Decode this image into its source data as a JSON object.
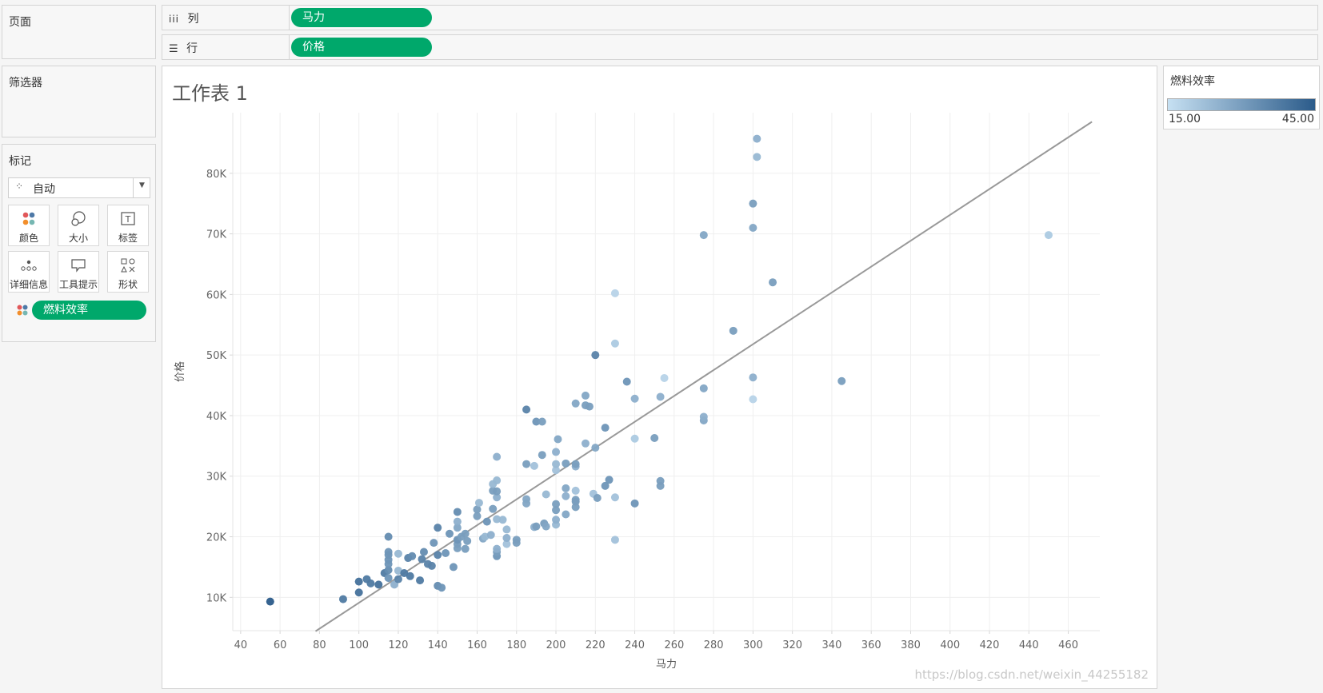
{
  "sidebar": {
    "pages_title": "页面",
    "filters_title": "筛选器",
    "marks_title": "标记",
    "mark_type": "自动",
    "buttons": [
      {
        "label": "颜色",
        "icon": "color-dots-icon"
      },
      {
        "label": "大小",
        "icon": "size-icon"
      },
      {
        "label": "标签",
        "icon": "label-icon"
      },
      {
        "label": "详细信息",
        "icon": "detail-icon"
      },
      {
        "label": "工具提示",
        "icon": "tooltip-icon"
      },
      {
        "label": "形状",
        "icon": "shape-icon"
      }
    ],
    "color_field": "燃料效率"
  },
  "shelves": {
    "columns": {
      "label": "列",
      "icon": "columns-icon",
      "pill": "马力"
    },
    "rows": {
      "label": "行",
      "icon": "rows-icon",
      "pill": "价格"
    }
  },
  "worksheet": {
    "title": "工作表 1"
  },
  "legend": {
    "title": "燃料效率",
    "min_label": "15.00",
    "max_label": "45.00",
    "color_low": "#c6e0f2",
    "color_high": "#2b5b8a"
  },
  "watermark": "https://blog.csdn.net/weixin_44255182",
  "chart_data": {
    "type": "scatter",
    "xlabel": "马力",
    "ylabel": "价格",
    "xlim": [
      36,
      476
    ],
    "ylim": [
      4500,
      90000
    ],
    "xticks": [
      40,
      60,
      80,
      100,
      120,
      140,
      160,
      180,
      200,
      220,
      240,
      260,
      280,
      300,
      320,
      340,
      360,
      380,
      400,
      420,
      440,
      460
    ],
    "yticks": [
      10000,
      20000,
      30000,
      40000,
      50000,
      60000,
      70000,
      80000
    ],
    "ytick_labels": [
      "10K",
      "20K",
      "30K",
      "40K",
      "50K",
      "60K",
      "70K",
      "80K"
    ],
    "grid": true,
    "color_encoding": "燃料效率",
    "trend_line": {
      "x": [
        78,
        472
      ],
      "y": [
        4400,
        88500
      ],
      "color": "#999999"
    },
    "points": [
      [
        55,
        9300,
        45
      ],
      [
        92,
        9700,
        38
      ],
      [
        100,
        10800,
        40
      ],
      [
        100,
        12600,
        40
      ],
      [
        104,
        13000,
        38
      ],
      [
        106,
        12300,
        38
      ],
      [
        110,
        12100,
        40
      ],
      [
        113,
        14000,
        38
      ],
      [
        115,
        13200,
        32
      ],
      [
        115,
        14500,
        34
      ],
      [
        115,
        15500,
        32
      ],
      [
        115,
        16200,
        32
      ],
      [
        115,
        17000,
        32
      ],
      [
        115,
        17500,
        32
      ],
      [
        115,
        20000,
        34
      ],
      [
        118,
        12100,
        26
      ],
      [
        120,
        13000,
        36
      ],
      [
        120,
        14400,
        24
      ],
      [
        120,
        17200,
        24
      ],
      [
        123,
        14000,
        38
      ],
      [
        125,
        16500,
        36
      ],
      [
        126,
        13500,
        38
      ],
      [
        127,
        16800,
        34
      ],
      [
        131,
        12800,
        38
      ],
      [
        132,
        16300,
        36
      ],
      [
        133,
        17500,
        34
      ],
      [
        135,
        15500,
        36
      ],
      [
        137,
        15200,
        36
      ],
      [
        138,
        19000,
        32
      ],
      [
        140,
        11900,
        34
      ],
      [
        140,
        17000,
        36
      ],
      [
        140,
        21500,
        36
      ],
      [
        142,
        11600,
        32
      ],
      [
        144,
        17300,
        32
      ],
      [
        146,
        20500,
        32
      ],
      [
        148,
        15000,
        32
      ],
      [
        150,
        18100,
        30
      ],
      [
        150,
        18800,
        30
      ],
      [
        150,
        19500,
        32
      ],
      [
        150,
        21500,
        28
      ],
      [
        150,
        22500,
        26
      ],
      [
        150,
        24100,
        34
      ],
      [
        152,
        20000,
        30
      ],
      [
        154,
        18000,
        30
      ],
      [
        154,
        20500,
        30
      ],
      [
        155,
        19300,
        30
      ],
      [
        160,
        23400,
        30
      ],
      [
        160,
        24500,
        30
      ],
      [
        161,
        25600,
        24
      ],
      [
        163,
        19700,
        28
      ],
      [
        164,
        20000,
        24
      ],
      [
        165,
        22500,
        32
      ],
      [
        167,
        20300,
        26
      ],
      [
        168,
        24600,
        30
      ],
      [
        168,
        27600,
        30
      ],
      [
        168,
        28700,
        24
      ],
      [
        170,
        16800,
        32
      ],
      [
        170,
        17500,
        30
      ],
      [
        170,
        18000,
        26
      ],
      [
        170,
        22900,
        24
      ],
      [
        170,
        26500,
        26
      ],
      [
        170,
        27500,
        30
      ],
      [
        170,
        29300,
        24
      ],
      [
        170,
        33200,
        26
      ],
      [
        173,
        22800,
        24
      ],
      [
        175,
        18800,
        22
      ],
      [
        175,
        19800,
        26
      ],
      [
        175,
        21200,
        24
      ],
      [
        180,
        19000,
        30
      ],
      [
        180,
        19500,
        30
      ],
      [
        185,
        25500,
        28
      ],
      [
        185,
        26200,
        28
      ],
      [
        185,
        32000,
        30
      ],
      [
        185,
        41000,
        36
      ],
      [
        189,
        21600,
        26
      ],
      [
        189,
        31700,
        22
      ],
      [
        190,
        21700,
        30
      ],
      [
        190,
        39000,
        32
      ],
      [
        193,
        39000,
        30
      ],
      [
        193,
        33500,
        30
      ],
      [
        194,
        22200,
        30
      ],
      [
        195,
        21700,
        28
      ],
      [
        195,
        27000,
        24
      ],
      [
        200,
        22000,
        24
      ],
      [
        200,
        22800,
        26
      ],
      [
        200,
        24400,
        30
      ],
      [
        200,
        25400,
        30
      ],
      [
        200,
        31000,
        22
      ],
      [
        200,
        32000,
        24
      ],
      [
        200,
        34000,
        26
      ],
      [
        201,
        36100,
        28
      ],
      [
        205,
        23700,
        28
      ],
      [
        205,
        26700,
        26
      ],
      [
        205,
        28000,
        28
      ],
      [
        205,
        32100,
        30
      ],
      [
        210,
        24900,
        30
      ],
      [
        210,
        25800,
        30
      ],
      [
        210,
        26100,
        30
      ],
      [
        210,
        27600,
        22
      ],
      [
        210,
        31600,
        26
      ],
      [
        210,
        32000,
        30
      ],
      [
        210,
        42000,
        28
      ],
      [
        215,
        35400,
        26
      ],
      [
        215,
        41700,
        30
      ],
      [
        215,
        43300,
        28
      ],
      [
        217,
        41500,
        30
      ],
      [
        219,
        27100,
        22
      ],
      [
        220,
        34700,
        28
      ],
      [
        221,
        26400,
        30
      ],
      [
        220,
        50000,
        36
      ],
      [
        225,
        28400,
        32
      ],
      [
        225,
        38000,
        32
      ],
      [
        227,
        29400,
        32
      ],
      [
        230,
        19500,
        22
      ],
      [
        230,
        26500,
        22
      ],
      [
        230,
        51900,
        20
      ],
      [
        230,
        60200,
        18
      ],
      [
        236,
        45600,
        32
      ],
      [
        240,
        25500,
        32
      ],
      [
        240,
        36200,
        20
      ],
      [
        240,
        42800,
        26
      ],
      [
        250,
        36300,
        30
      ],
      [
        253,
        28400,
        30
      ],
      [
        253,
        29200,
        30
      ],
      [
        253,
        43100,
        26
      ],
      [
        255,
        46200,
        18
      ],
      [
        275,
        39200,
        28
      ],
      [
        275,
        39800,
        26
      ],
      [
        275,
        44500,
        28
      ],
      [
        275,
        69800,
        28
      ],
      [
        290,
        54000,
        30
      ],
      [
        300,
        42700,
        18
      ],
      [
        300,
        46300,
        26
      ],
      [
        300,
        71000,
        28
      ],
      [
        300,
        75000,
        30
      ],
      [
        302,
        82700,
        24
      ],
      [
        302,
        85700,
        26
      ],
      [
        310,
        62000,
        30
      ],
      [
        345,
        45700,
        30
      ],
      [
        450,
        69800,
        20
      ]
    ]
  }
}
